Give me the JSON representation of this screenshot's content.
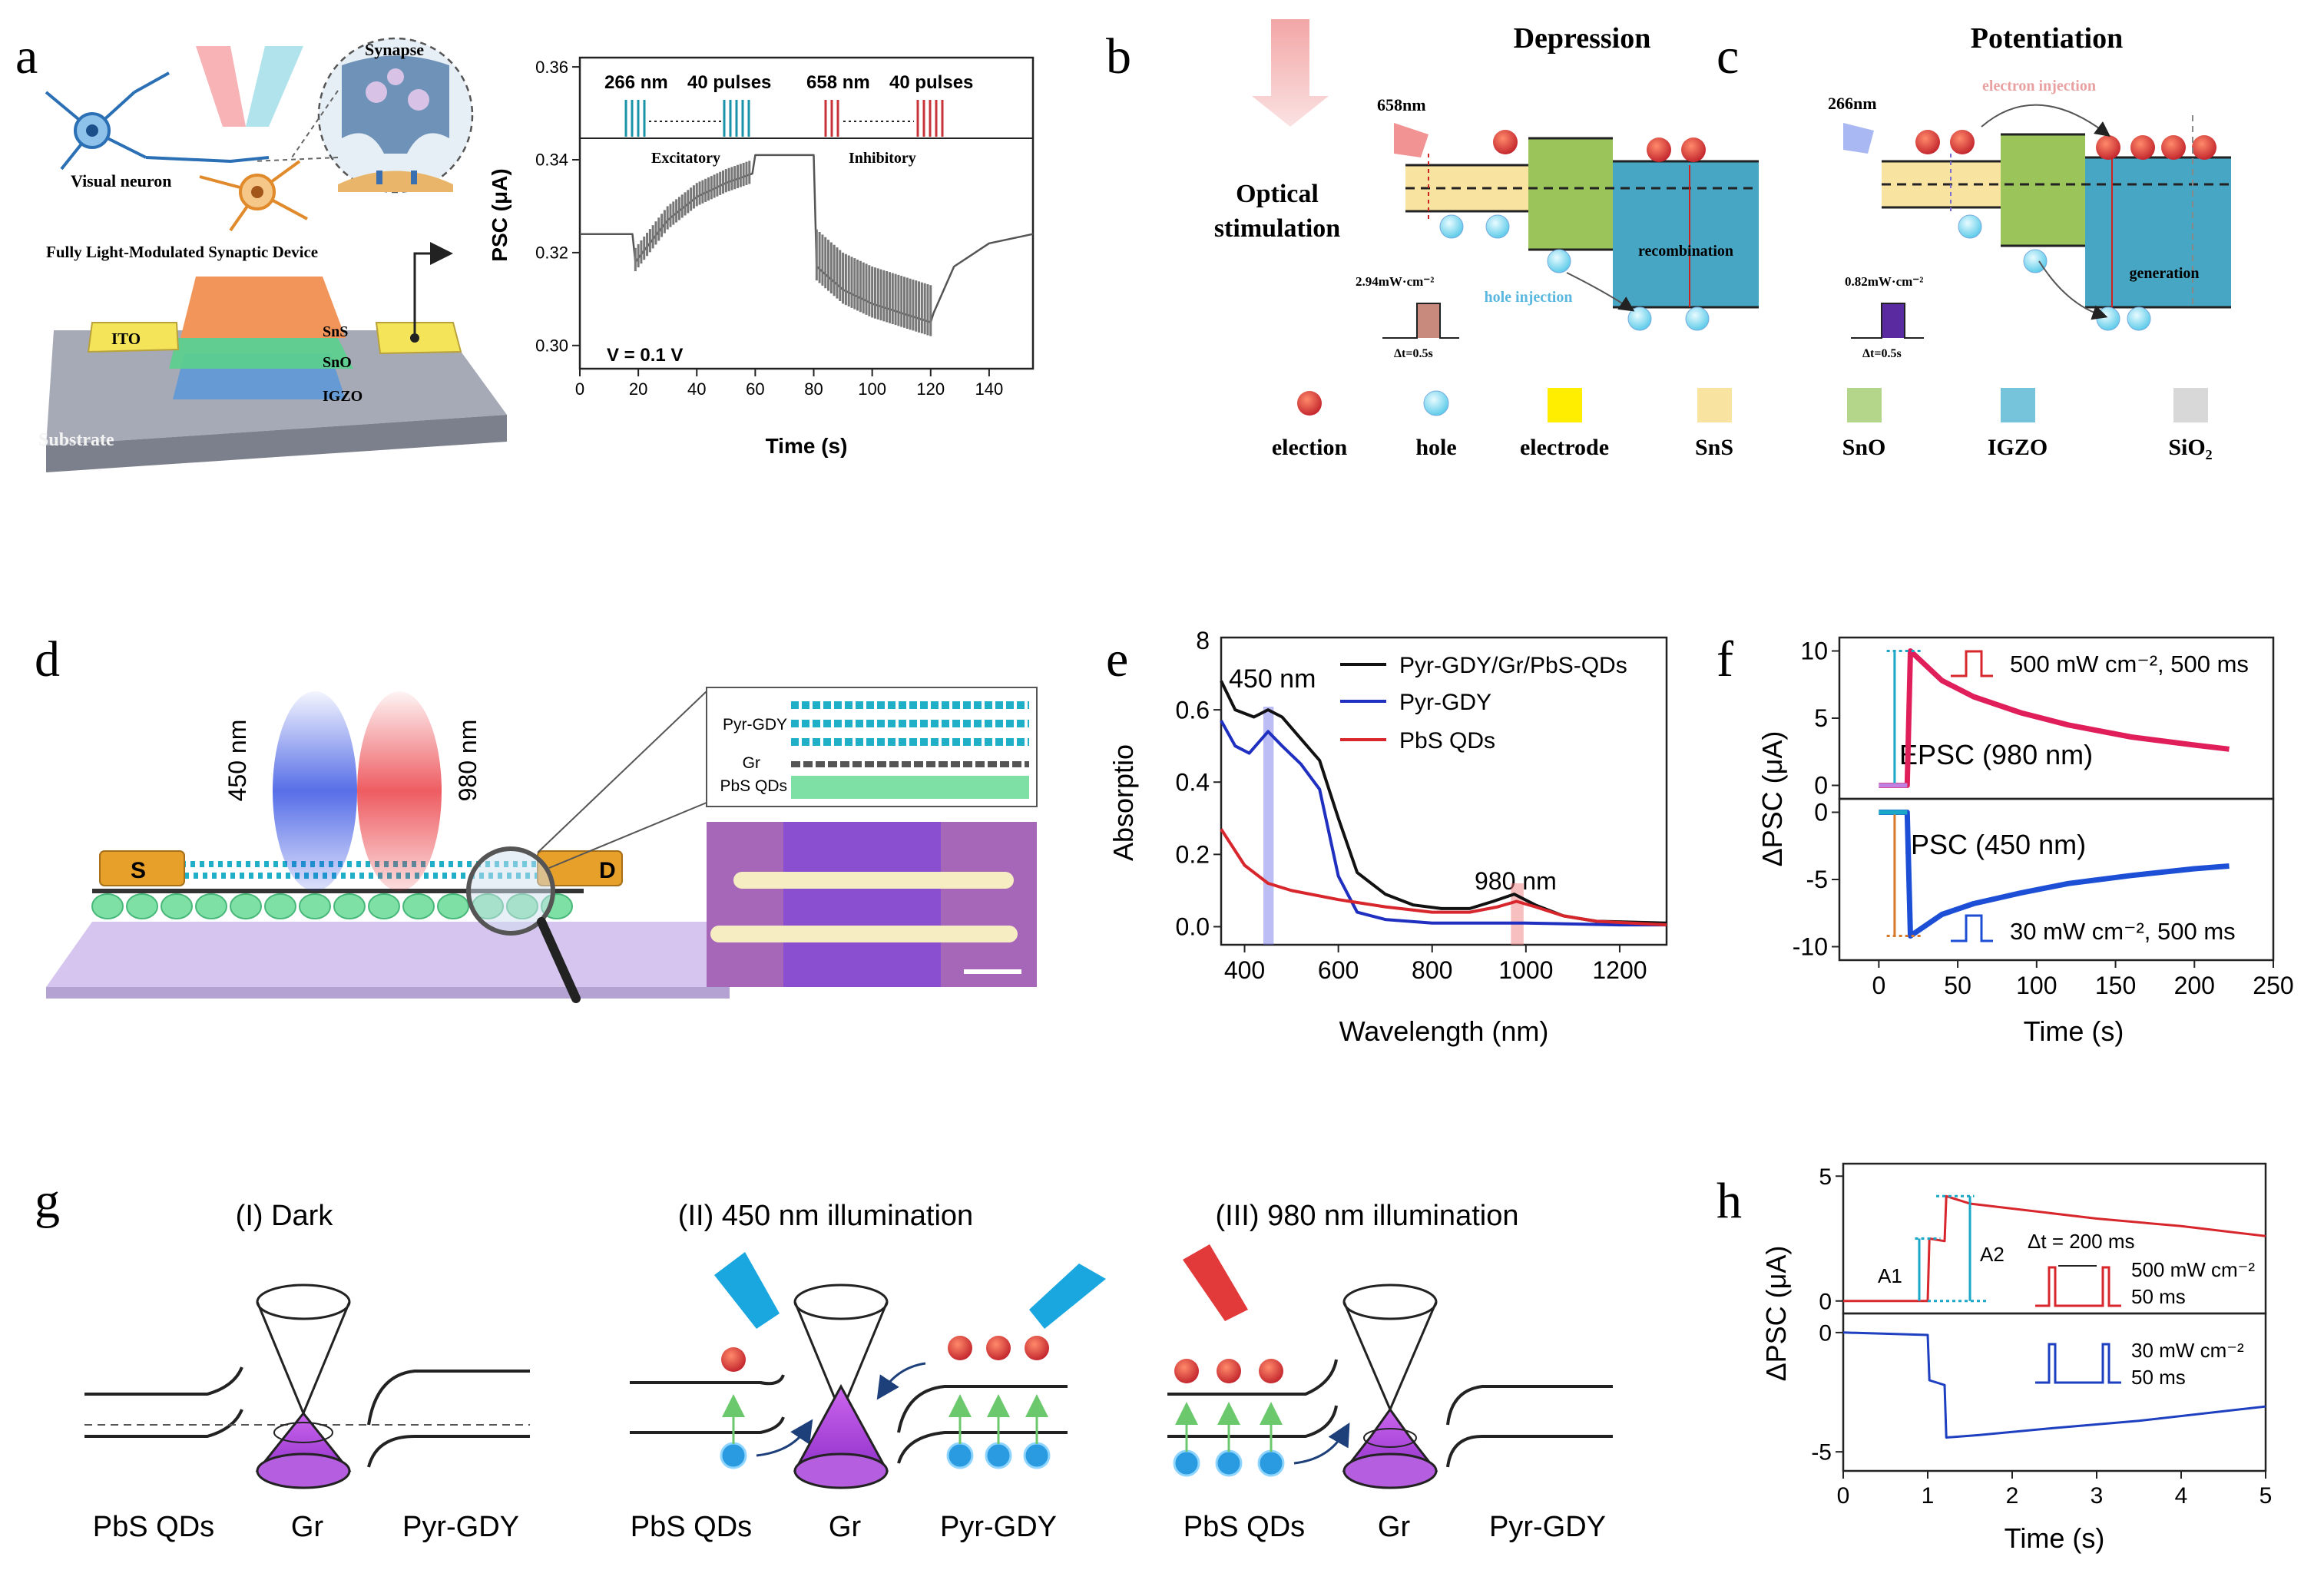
{
  "panel_letters": {
    "a": "a",
    "b": "b",
    "c": "c",
    "d": "d",
    "e": "e",
    "f": "f",
    "g": "g",
    "h": "h"
  },
  "panel_a": {
    "synapse": "Synapse",
    "visual_neuron": "Visual neuron",
    "device_title": "Fully Light-Modulated Synaptic Device",
    "ito": "ITO",
    "sns": "SnS",
    "sno": "SnO",
    "igzo": "IGZO",
    "substrate": "Substrate"
  },
  "panel_b": {
    "title": "Depression",
    "optical_line1": "Optical",
    "optical_line2": "stimulation",
    "wavelength": "658nm",
    "power": "2.94mW·cm⁻²",
    "dt": "Δt=0.5s",
    "hole_injection": "hole injection",
    "recombination": "recombination"
  },
  "panel_c": {
    "title": "Potentiation",
    "wavelength": "266nm",
    "power": "0.82mW·cm⁻²",
    "dt": "Δt=0.5s",
    "electron_injection": "electron injection",
    "generation": "generation"
  },
  "legend_bc": [
    "election",
    "hole",
    "electrode",
    "SnS",
    "SnO",
    "IGZO",
    "SiO₂"
  ],
  "panel_d": {
    "label_450": "450 nm",
    "label_980": "980 nm",
    "s": "S",
    "d": "D",
    "layer_pyr": "Pyr-GDY",
    "layer_gr": "Gr",
    "layer_pbs": "PbS QDs"
  },
  "panel_g": {
    "titles": [
      "(I) Dark",
      "(II) 450 nm illumination",
      "(III) 980 nm illumination"
    ],
    "labels": [
      "PbS QDs",
      "Gr",
      "Pyr-GDY"
    ]
  },
  "colors": {
    "red_light": "#e8262d",
    "blue_light": "#1f3ee0",
    "cyan_light": "#19a9d8",
    "black_trace": "#111111",
    "epsc": "#e01e5a",
    "ipsc": "#1d4fd6",
    "sns": "#f9e3a0",
    "sno": "#9bc45b",
    "igzo": "#46a6c4",
    "electrode": "#ffee00",
    "sio2": "#d8d8d8"
  },
  "chart_data": [
    {
      "id": "a",
      "type": "line",
      "xlabel": "Time (s)",
      "ylabel": "PSC (μA)",
      "xlim": [
        0,
        155
      ],
      "ylim": [
        0.295,
        0.362
      ],
      "xticks": [
        0,
        20,
        40,
        60,
        80,
        100,
        120,
        140
      ],
      "yticks": [
        0.3,
        0.32,
        0.34,
        0.36
      ],
      "annotations": {
        "v": "V = 0.1 V",
        "exc": "Excitatory",
        "inh": "Inhibitory",
        "ex_label_nm": "266 nm",
        "ex_label_pulses": "40 pulses",
        "in_label_nm": "658 nm",
        "in_label_pulses": "40 pulses"
      },
      "series": [
        {
          "name": "PSC",
          "points": [
            [
              0,
              0.324
            ],
            [
              18,
              0.324
            ],
            [
              19,
              0.318
            ],
            [
              30,
              0.327
            ],
            [
              40,
              0.332
            ],
            [
              50,
              0.335
            ],
            [
              59,
              0.337
            ],
            [
              60,
              0.341
            ],
            [
              80,
              0.341
            ],
            [
              81,
              0.317
            ],
            [
              90,
              0.312
            ],
            [
              100,
              0.309
            ],
            [
              110,
              0.307
            ],
            [
              120,
              0.305
            ],
            [
              121,
              0.307
            ],
            [
              128,
              0.317
            ],
            [
              140,
              0.322
            ],
            [
              155,
              0.324
            ]
          ]
        }
      ]
    },
    {
      "id": "e",
      "type": "line",
      "xlabel": "Wavelength (nm)",
      "ylabel": "Absorptio",
      "xlim": [
        350,
        1300
      ],
      "ylim": [
        -0.05,
        0.8
      ],
      "xticks": [
        400,
        600,
        800,
        1000,
        1200
      ],
      "yticks": [
        0.0,
        0.2,
        0.4,
        0.6
      ],
      "ytick_top": "8",
      "annotations": {
        "a450": "450 nm",
        "a980": "980 nm"
      },
      "series": [
        {
          "name": "Pyr-GDY/Gr/PbS-QDs",
          "color": "#111111",
          "points": [
            [
              350,
              0.68
            ],
            [
              380,
              0.6
            ],
            [
              420,
              0.58
            ],
            [
              450,
              0.6
            ],
            [
              480,
              0.58
            ],
            [
              520,
              0.52
            ],
            [
              560,
              0.46
            ],
            [
              600,
              0.3
            ],
            [
              640,
              0.15
            ],
            [
              700,
              0.09
            ],
            [
              760,
              0.06
            ],
            [
              820,
              0.05
            ],
            [
              880,
              0.05
            ],
            [
              930,
              0.07
            ],
            [
              975,
              0.09
            ],
            [
              1020,
              0.06
            ],
            [
              1080,
              0.03
            ],
            [
              1150,
              0.015
            ],
            [
              1300,
              0.01
            ]
          ]
        },
        {
          "name": "Pyr-GDY",
          "color": "#1f2fbf",
          "points": [
            [
              350,
              0.57
            ],
            [
              380,
              0.5
            ],
            [
              410,
              0.48
            ],
            [
              450,
              0.54
            ],
            [
              480,
              0.5
            ],
            [
              520,
              0.45
            ],
            [
              560,
              0.38
            ],
            [
              600,
              0.14
            ],
            [
              640,
              0.04
            ],
            [
              700,
              0.02
            ],
            [
              800,
              0.01
            ],
            [
              900,
              0.01
            ],
            [
              1000,
              0.01
            ],
            [
              1200,
              0.005
            ],
            [
              1300,
              0.005
            ]
          ]
        },
        {
          "name": "PbS QDs",
          "color": "#d8262d",
          "points": [
            [
              350,
              0.27
            ],
            [
              400,
              0.17
            ],
            [
              450,
              0.12
            ],
            [
              500,
              0.1
            ],
            [
              600,
              0.075
            ],
            [
              700,
              0.055
            ],
            [
              800,
              0.04
            ],
            [
              880,
              0.04
            ],
            [
              940,
              0.055
            ],
            [
              980,
              0.07
            ],
            [
              1020,
              0.055
            ],
            [
              1080,
              0.03
            ],
            [
              1150,
              0.015
            ],
            [
              1300,
              0.005
            ]
          ]
        }
      ]
    },
    {
      "id": "f",
      "type": "line",
      "xlabel": "Time (s)",
      "ylabel": "ΔPSC (μA)",
      "xlim": [
        -25,
        250
      ],
      "xticks": [
        0,
        50,
        100,
        150,
        200,
        250
      ],
      "top": {
        "ylim": [
          -1,
          11
        ],
        "yticks": [
          0,
          5,
          10
        ],
        "label": "EPSC (980 nm)",
        "pulse": "500 mW cm⁻², 500 ms",
        "points": [
          [
            0,
            0
          ],
          [
            18,
            0
          ],
          [
            20,
            10
          ],
          [
            40,
            7.8
          ],
          [
            60,
            6.6
          ],
          [
            90,
            5.4
          ],
          [
            120,
            4.5
          ],
          [
            160,
            3.6
          ],
          [
            200,
            3.0
          ],
          [
            222,
            2.7
          ]
        ]
      },
      "bottom": {
        "ylim": [
          -11,
          1
        ],
        "yticks": [
          -10,
          -5,
          0
        ],
        "label": "IPSC (450 nm)",
        "pulse": "30 mW cm⁻², 500 ms",
        "points": [
          [
            0,
            0
          ],
          [
            18,
            0
          ],
          [
            20,
            -9.2
          ],
          [
            40,
            -7.6
          ],
          [
            60,
            -6.8
          ],
          [
            90,
            -6.0
          ],
          [
            120,
            -5.3
          ],
          [
            160,
            -4.7
          ],
          [
            200,
            -4.2
          ],
          [
            222,
            -4.0
          ]
        ]
      }
    },
    {
      "id": "h",
      "type": "line",
      "xlabel": "Time (s)",
      "ylabel": "ΔPSC (μA)",
      "xlim": [
        0,
        5
      ],
      "xticks": [
        0,
        1,
        2,
        3,
        4,
        5
      ],
      "top": {
        "ylim": [
          -0.5,
          5.5
        ],
        "yticks": [
          0,
          5
        ],
        "a1": "A1",
        "a2": "A2",
        "dt": "Δt = 200 ms",
        "pulse_line1": "500 mW cm⁻²",
        "pulse_line2": "50 ms",
        "points": [
          [
            0,
            0
          ],
          [
            1.0,
            0
          ],
          [
            1.02,
            2.5
          ],
          [
            1.2,
            2.4
          ],
          [
            1.22,
            4.2
          ],
          [
            1.5,
            3.9
          ],
          [
            2.0,
            3.7
          ],
          [
            3.0,
            3.3
          ],
          [
            4.0,
            3.0
          ],
          [
            5.0,
            2.6
          ]
        ]
      },
      "bottom": {
        "ylim": [
          -5.8,
          0.8
        ],
        "yticks": [
          -5,
          0
        ],
        "pulse_line1": "30 mW cm⁻²",
        "pulse_line2": "50 ms",
        "points": [
          [
            0,
            0
          ],
          [
            1.0,
            -0.1
          ],
          [
            1.02,
            -2.0
          ],
          [
            1.2,
            -2.2
          ],
          [
            1.22,
            -4.4
          ],
          [
            1.6,
            -4.3
          ],
          [
            2.5,
            -4.0
          ],
          [
            3.5,
            -3.7
          ],
          [
            5.0,
            -3.1
          ]
        ]
      }
    }
  ]
}
